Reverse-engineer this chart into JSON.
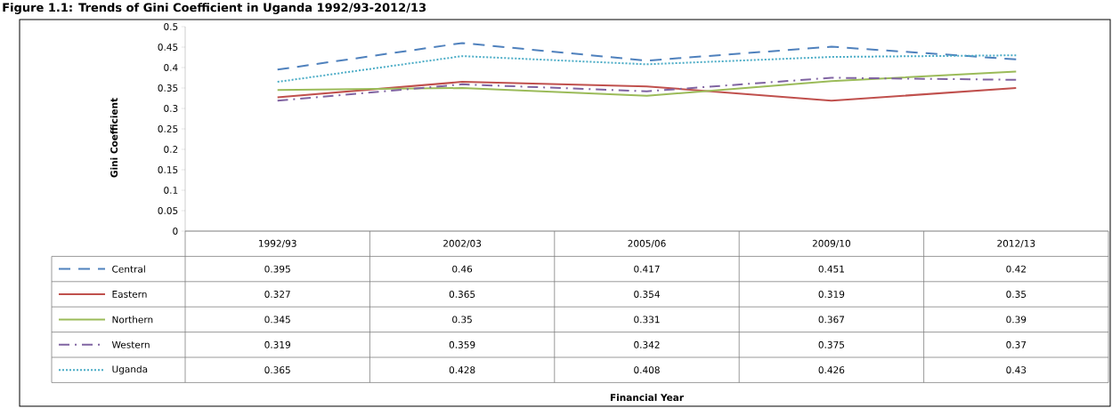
{
  "chart_data": {
    "type": "line",
    "title": "Figure 1.1: Trends of Gini Coefficient in Uganda 1992/93-2012/13",
    "annotations": [
      "Financial Year"
    ],
    "ylabel": "Gini Coefficient",
    "categories": [
      "1992/93",
      "2002/03",
      "2005/06",
      "2009/10",
      "2012/13"
    ],
    "series": [
      {
        "name": "Central",
        "color": "#4f81bd",
        "line_style": "dashed",
        "values": [
          0.395,
          0.46,
          0.417,
          0.451,
          0.42
        ]
      },
      {
        "name": "Eastern",
        "color": "#c0504d",
        "line_style": "solid",
        "values": [
          0.327,
          0.365,
          0.354,
          0.319,
          0.35
        ]
      },
      {
        "name": "Northern",
        "color": "#9bbb59",
        "line_style": "solid",
        "values": [
          0.345,
          0.35,
          0.331,
          0.367,
          0.39
        ]
      },
      {
        "name": "Western",
        "color": "#8064a2",
        "line_style": "dashdot",
        "values": [
          0.319,
          0.359,
          0.342,
          0.375,
          0.37
        ]
      },
      {
        "name": "Uganda",
        "color": "#4bacc6",
        "line_style": "dotted",
        "values": [
          0.365,
          0.428,
          0.408,
          0.426,
          0.43
        ]
      }
    ],
    "ylim": [
      0,
      0.5
    ],
    "yticks": [
      0,
      0.05,
      0.1,
      0.15,
      0.2,
      0.25,
      0.3,
      0.35,
      0.4,
      0.45,
      0.5
    ],
    "data_labels": true,
    "legend": "bottom left",
    "grid": false,
    "marker": "none"
  }
}
